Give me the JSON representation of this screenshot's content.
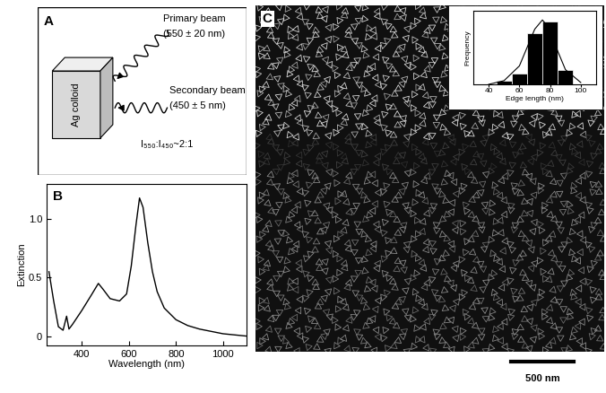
{
  "panel_labels": [
    "A",
    "B",
    "C"
  ],
  "panel_a": {
    "sample": "Ag colloid",
    "primary_beam": {
      "label": "Primary beam",
      "wavelength": "(550 ± 20 nm)"
    },
    "secondary_beam": {
      "label": "Secondary beam",
      "wavelength": "(450 ± 5 nm)"
    },
    "ratio": "I₅₅₀:I₄₅₀~2:1"
  },
  "chart_data": [
    {
      "type": "line",
      "xlabel": "Wavelength (nm)",
      "ylabel": "Extinction",
      "x": [
        260,
        280,
        300,
        320,
        335,
        345,
        360,
        400,
        440,
        470,
        490,
        520,
        560,
        590,
        610,
        630,
        645,
        660,
        680,
        700,
        720,
        750,
        800,
        850,
        900,
        950,
        1000,
        1050,
        1100
      ],
      "values": [
        0.55,
        0.3,
        0.08,
        0.05,
        0.17,
        0.06,
        0.1,
        0.22,
        0.35,
        0.45,
        0.4,
        0.32,
        0.3,
        0.36,
        0.6,
        0.95,
        1.18,
        1.1,
        0.8,
        0.55,
        0.38,
        0.24,
        0.14,
        0.09,
        0.06,
        0.04,
        0.02,
        0.01,
        0.0
      ],
      "color": "#000000",
      "xlim": [
        250,
        1100
      ],
      "ylim": [
        -0.08,
        1.3
      ],
      "xticks": [
        400,
        600,
        800,
        1000
      ],
      "yticks": [
        0,
        0.5,
        {
          "value": 1,
          "label": "1.0"
        }
      ]
    },
    {
      "type": "histogram",
      "xlabel": "Edge length (nm)",
      "ylabel": "Frequency",
      "bins": [
        45,
        55,
        65,
        75,
        85,
        95
      ],
      "values": [
        1,
        3,
        14,
        17,
        4
      ],
      "fit_x": [
        40,
        50,
        60,
        65,
        70,
        75,
        80,
        85,
        90,
        100
      ],
      "fit_values": [
        0,
        1,
        5,
        10,
        15,
        17.5,
        15,
        9,
        4,
        0.5
      ],
      "color": "#000000",
      "xlim": [
        30,
        110
      ],
      "ylim": [
        0,
        20
      ],
      "xticks": [
        40,
        60,
        80,
        100
      ],
      "tick_labels": "x"
    }
  ],
  "panel_c": {
    "scale_bar": "500 nm"
  }
}
